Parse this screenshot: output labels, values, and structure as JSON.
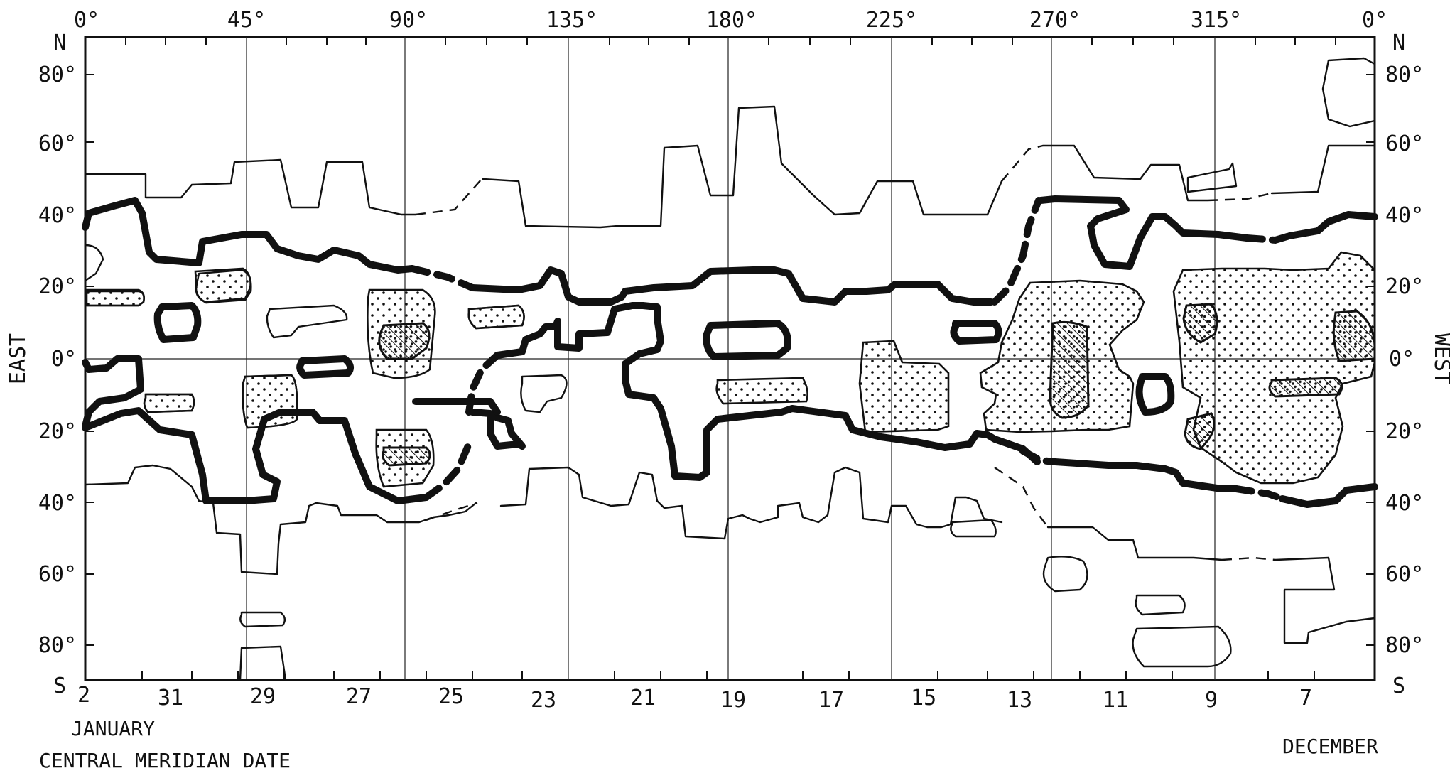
{
  "longitude_labels": [
    "0°",
    "45°",
    "90°",
    "135°",
    "180°",
    "225°",
    "270°",
    "315°",
    "0°"
  ],
  "latitude_labels_left": [
    "N",
    "80°",
    "60°",
    "40°",
    "20°",
    "0°",
    "20°",
    "40°",
    "60°",
    "80°",
    "S"
  ],
  "latitude_labels_right": [
    "N",
    "80°",
    "60°",
    "40°",
    "20°",
    "0°",
    "20°",
    "40°",
    "60°",
    "80°",
    "S"
  ],
  "side_labels": {
    "left": "EAST",
    "right": "WEST"
  },
  "date_labels": [
    "2",
    "31",
    "29",
    "27",
    "25",
    "23",
    "21",
    "19",
    "17",
    "15",
    "13",
    "11",
    "9",
    "7"
  ],
  "month_labels": {
    "left": "JANUARY",
    "right": "DECEMBER"
  },
  "axis_caption": "CENTRAL MERIDIAN DATE",
  "colors": {
    "ink": "#111111",
    "paper": "#ffffff"
  }
}
